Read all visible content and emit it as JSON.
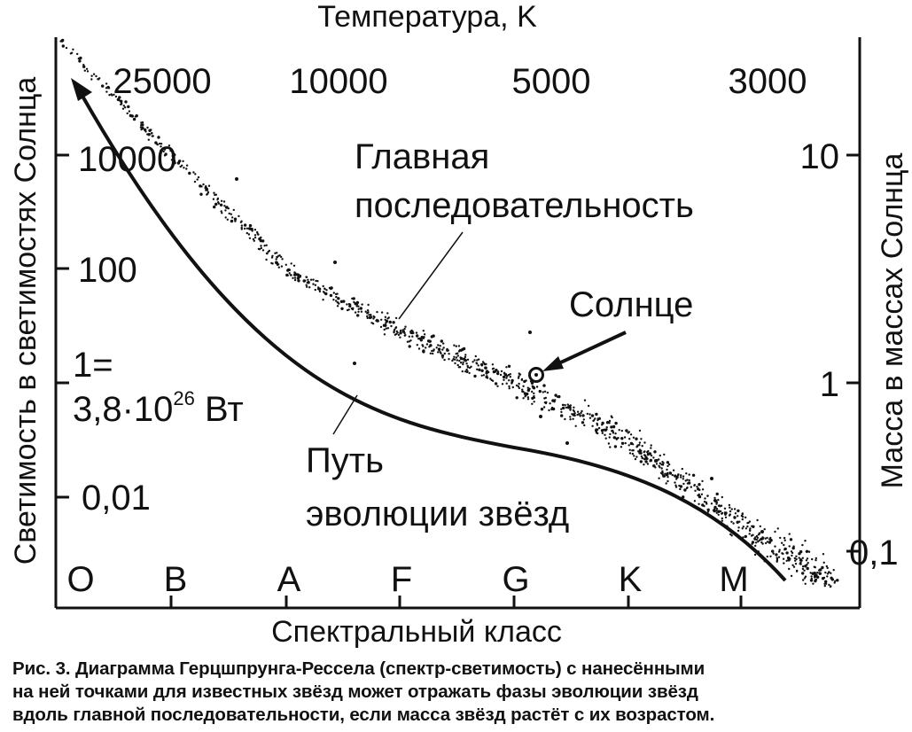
{
  "chart_data": {
    "type": "scatter",
    "title": "",
    "top_axis_title": "Температура, K",
    "top_ticks": [
      "25000",
      "10000",
      "5000",
      "3000"
    ],
    "xlabel": "Спектральный класс",
    "x_categories": [
      "O",
      "B",
      "A",
      "F",
      "G",
      "K",
      "M"
    ],
    "ylabel_left": "Светимость в светимостях Солнца",
    "left_ticks": [
      "10000",
      "100",
      "1=",
      "0,01"
    ],
    "sun_unit_prefix": "3,8·10",
    "sun_unit_exp": "26",
    "sun_unit_suffix": " Вт",
    "ylabel_right": "Масса в массах Солнца",
    "right_ticks": [
      "10",
      "1",
      "0,1"
    ],
    "y_scale": "log",
    "main_sequence_trend": [
      {
        "class": "O",
        "luminosity": 1000000
      },
      {
        "class": "B",
        "luminosity": 10000
      },
      {
        "class": "A",
        "luminosity": 100
      },
      {
        "class": "F",
        "luminosity": 8
      },
      {
        "class": "G",
        "luminosity": 1
      },
      {
        "class": "K",
        "luminosity": 0.1
      },
      {
        "class": "M",
        "luminosity": 0.003
      }
    ],
    "annotations": {
      "main_sequence": [
        "Главная",
        "последовательность"
      ],
      "sun": "Солнце",
      "evolution_path": [
        "Путь",
        "эволюции звёзд"
      ]
    }
  },
  "caption": [
    "Рис. 3. Диаграмма Герцшпрунга-Рессела (спектр-светимость) с нанесёнными",
    "на ней точками для известных звёзд может отражать фазы эволюции звёзд",
    "вдоль главной последовательности, если масса звёзд растёт с их возрастом."
  ]
}
